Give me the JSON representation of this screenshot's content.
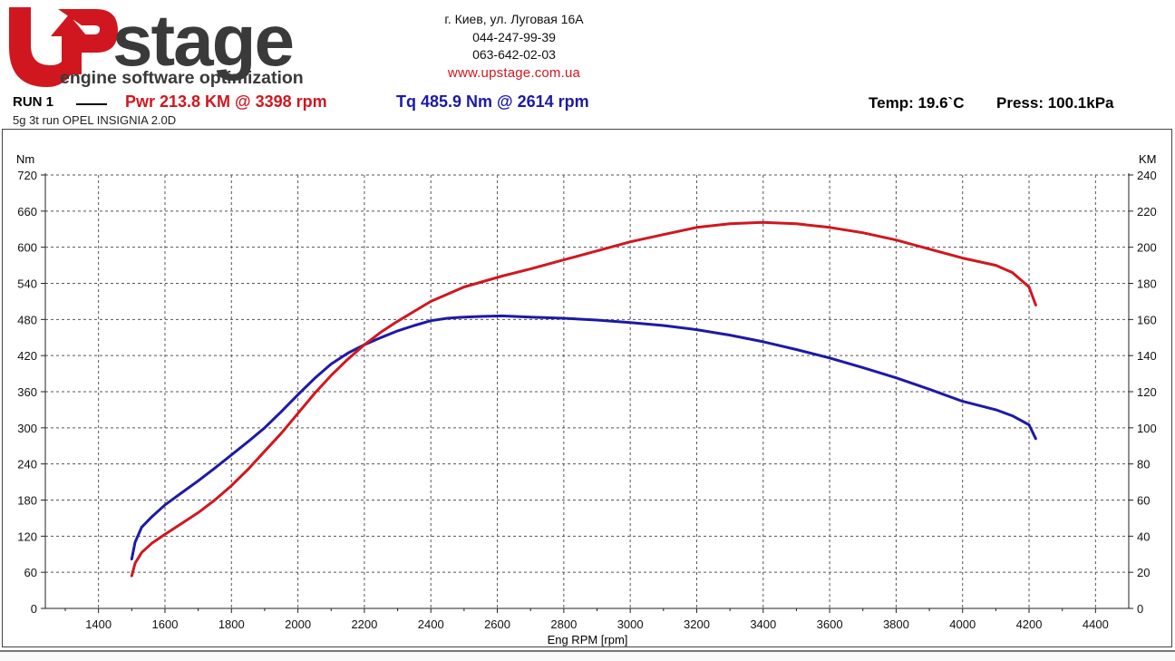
{
  "header": {
    "logo_word": "stage",
    "logo_tagline": "engine software optimization",
    "address": "г. Киев, ул. Луговая 16А",
    "phone1": "044-247-99-39",
    "phone2": "063-642-02-03",
    "url": "www.upstage.com.ua"
  },
  "run": {
    "label": "RUN 1",
    "description": "5g 3t run OPEL INSIGNIA 2.0D",
    "power_summary": "Pwr  213.8 KM @ 3398 rpm",
    "torque_summary": "Tq 485.9 Nm @ 2614 rpm",
    "temp": "Temp: 19.6`C",
    "press": "Press: 100.1kPa"
  },
  "colors": {
    "power": "#d0171f",
    "torque": "#1d1aa6",
    "brand_red": "#d0171f",
    "brand_gray": "#3a3a3a"
  },
  "chart_data": {
    "type": "line",
    "xlabel": "Eng RPM [rpm]",
    "y_left_unit": "Nm",
    "y_right_unit": "KM",
    "xlim": [
      1240,
      4500
    ],
    "ylim_left": [
      0,
      720
    ],
    "ylim_right": [
      0,
      240
    ],
    "x_ticks": [
      1400,
      1600,
      1800,
      2000,
      2200,
      2400,
      2600,
      2800,
      3000,
      3200,
      3400,
      3600,
      3800,
      4000,
      4200,
      4400
    ],
    "y_left_ticks": [
      0,
      60,
      120,
      180,
      240,
      300,
      360,
      420,
      480,
      540,
      600,
      660,
      720
    ],
    "y_right_ticks": [
      0,
      20,
      40,
      60,
      80,
      100,
      120,
      140,
      160,
      180,
      200,
      220,
      240
    ],
    "grid": true,
    "series": [
      {
        "name": "Tq",
        "axis": "left",
        "x": [
          1500,
          1510,
          1530,
          1560,
          1600,
          1650,
          1700,
          1750,
          1800,
          1850,
          1900,
          1950,
          2000,
          2050,
          2100,
          2150,
          2200,
          2250,
          2300,
          2350,
          2400,
          2450,
          2500,
          2550,
          2614,
          2700,
          2800,
          2900,
          3000,
          3100,
          3200,
          3300,
          3400,
          3500,
          3600,
          3700,
          3800,
          3900,
          4000,
          4100,
          4150,
          4200,
          4220
        ],
        "y": [
          82,
          110,
          135,
          152,
          172,
          192,
          212,
          233,
          255,
          277,
          300,
          327,
          355,
          382,
          406,
          424,
          438,
          450,
          461,
          470,
          478,
          482,
          484,
          485,
          485.9,
          484,
          482,
          479,
          475,
          470,
          463,
          454,
          443,
          430,
          416,
          400,
          383,
          364,
          344,
          330,
          320,
          305,
          282
        ]
      },
      {
        "name": "Pwr",
        "axis": "right",
        "x": [
          1500,
          1510,
          1530,
          1560,
          1600,
          1650,
          1700,
          1750,
          1800,
          1850,
          1900,
          1950,
          2000,
          2050,
          2100,
          2150,
          2200,
          2250,
          2300,
          2400,
          2500,
          2614,
          2700,
          2800,
          2900,
          3000,
          3100,
          3200,
          3300,
          3398,
          3500,
          3600,
          3700,
          3800,
          3900,
          4000,
          4100,
          4150,
          4200,
          4220
        ],
        "y": [
          18,
          25,
          31,
          36,
          41,
          47,
          53,
          60,
          68,
          77,
          87,
          97,
          108,
          119,
          129,
          138,
          146,
          153,
          159,
          170,
          178,
          184,
          188,
          193,
          198,
          203,
          207,
          211,
          213,
          213.8,
          213,
          211,
          208,
          204,
          199,
          194,
          190,
          186,
          178,
          168
        ]
      }
    ]
  }
}
